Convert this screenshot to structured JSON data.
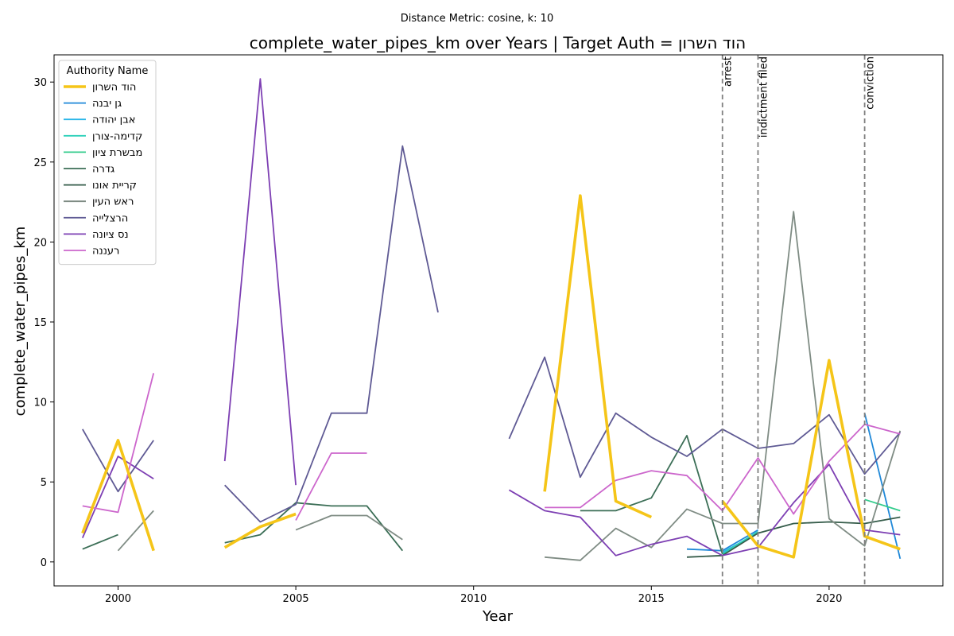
{
  "suptitle": "Distance Metric: cosine, k: 10",
  "chart_data": {
    "type": "line",
    "title": "complete_water_pipes_km over Years | Target Auth = הוד השרון",
    "xlabel": "Year",
    "ylabel": "complete_water_pipes_km",
    "xlim": [
      1998.2,
      2023.2
    ],
    "ylim": [
      -1.5,
      31.7
    ],
    "xticks": [
      2000,
      2005,
      2010,
      2015,
      2020
    ],
    "yticks": [
      0,
      5,
      10,
      15,
      20,
      25,
      30
    ],
    "grid": false,
    "legend": {
      "title": "Authority Name",
      "placement": "upper-left"
    },
    "events": [
      {
        "x": 2017,
        "label": "arrest"
      },
      {
        "x": 2018,
        "label": "indictment filed"
      },
      {
        "x": 2021,
        "label": "conviction"
      }
    ],
    "series": [
      {
        "name": "הוד השרון",
        "color": "#f5c518",
        "target": true,
        "points": [
          [
            1999,
            1.8
          ],
          [
            2000,
            7.6
          ],
          [
            2001,
            0.7
          ],
          [
            2003,
            0.9
          ],
          [
            2004,
            2.2
          ],
          [
            2005,
            3.0
          ],
          [
            2012,
            4.4
          ],
          [
            2013,
            22.9
          ],
          [
            2014,
            3.8
          ],
          [
            2015,
            2.8
          ],
          [
            2017,
            3.8
          ],
          [
            2018,
            1.0
          ],
          [
            2019,
            0.3
          ],
          [
            2020,
            12.6
          ],
          [
            2021,
            1.6
          ],
          [
            2022,
            0.8
          ]
        ]
      },
      {
        "name": "גן יבנה",
        "color": "#1f88d8",
        "target": false,
        "points": [
          [
            2016,
            0.8
          ],
          [
            2017,
            0.7
          ],
          [
            2018,
            2.0
          ],
          [
            2021,
            9.3
          ],
          [
            2022,
            0.2
          ]
        ]
      },
      {
        "name": "אבן יהודה",
        "color": "#29b6e8",
        "target": false,
        "points": [
          [
            2017,
            0.6
          ],
          [
            2018,
            1.8
          ]
        ]
      },
      {
        "name": "קדימה-צורן",
        "color": "#2ad0b8",
        "target": false,
        "points": [
          [
            2017,
            0.5
          ],
          [
            2018,
            1.9
          ]
        ]
      },
      {
        "name": "מבשרת ציון",
        "color": "#33cc8c",
        "target": false,
        "points": [
          [
            2021,
            3.9
          ],
          [
            2022,
            3.2
          ]
        ]
      },
      {
        "name": "גדרה",
        "color": "#3b6e56",
        "target": false,
        "points": [
          [
            1999,
            0.8
          ],
          [
            2000,
            1.7
          ],
          [
            2003,
            1.2
          ],
          [
            2004,
            1.7
          ],
          [
            2005,
            3.7
          ],
          [
            2006,
            3.5
          ],
          [
            2007,
            3.5
          ],
          [
            2008,
            0.7
          ],
          [
            2013,
            3.2
          ],
          [
            2014,
            3.2
          ],
          [
            2015,
            4.0
          ],
          [
            2016,
            7.9
          ],
          [
            2017,
            0.5
          ]
        ]
      },
      {
        "name": "קריית אונו",
        "color": "#355c4a",
        "target": false,
        "points": [
          [
            2016,
            0.3
          ],
          [
            2017,
            0.4
          ],
          [
            2018,
            1.8
          ],
          [
            2019,
            2.4
          ],
          [
            2020,
            2.5
          ],
          [
            2021,
            2.4
          ],
          [
            2022,
            2.8
          ]
        ]
      },
      {
        "name": "ראש העין",
        "color": "#7f8c84",
        "target": false,
        "points": [
          [
            2000,
            0.7
          ],
          [
            2001,
            3.2
          ],
          [
            2005,
            2.0
          ],
          [
            2006,
            2.9
          ],
          [
            2007,
            2.9
          ],
          [
            2008,
            1.4
          ],
          [
            2012,
            0.3
          ],
          [
            2013,
            0.1
          ],
          [
            2014,
            2.1
          ],
          [
            2015,
            0.9
          ],
          [
            2016,
            3.3
          ],
          [
            2017,
            2.4
          ],
          [
            2018,
            2.4
          ],
          [
            2019,
            21.9
          ],
          [
            2020,
            2.7
          ],
          [
            2021,
            1.0
          ],
          [
            2022,
            8.2
          ]
        ]
      },
      {
        "name": "הרצלייה",
        "color": "#5f5a94",
        "target": false,
        "points": [
          [
            1999,
            8.3
          ],
          [
            2000,
            4.4
          ],
          [
            2001,
            7.6
          ],
          [
            2003,
            4.8
          ],
          [
            2004,
            2.5
          ],
          [
            2005,
            3.6
          ],
          [
            2006,
            9.3
          ],
          [
            2007,
            9.3
          ],
          [
            2008,
            26.0
          ],
          [
            2009,
            15.6
          ],
          [
            2011,
            7.7
          ],
          [
            2012,
            12.8
          ],
          [
            2013,
            5.3
          ],
          [
            2014,
            9.3
          ],
          [
            2015,
            7.8
          ],
          [
            2016,
            6.6
          ],
          [
            2017,
            8.3
          ],
          [
            2018,
            7.1
          ],
          [
            2019,
            7.4
          ],
          [
            2020,
            9.2
          ],
          [
            2021,
            5.5
          ],
          [
            2022,
            8.1
          ]
        ]
      },
      {
        "name": "נס ציונה",
        "color": "#7d3fb3",
        "target": false,
        "points": [
          [
            1999,
            1.5
          ],
          [
            2000,
            6.6
          ],
          [
            2001,
            5.2
          ],
          [
            2003,
            6.3
          ],
          [
            2004,
            30.2
          ],
          [
            2005,
            4.8
          ],
          [
            2011,
            4.5
          ],
          [
            2012,
            3.2
          ],
          [
            2013,
            2.8
          ],
          [
            2014,
            0.4
          ],
          [
            2015,
            1.1
          ],
          [
            2016,
            1.6
          ],
          [
            2017,
            0.4
          ],
          [
            2018,
            0.9
          ],
          [
            2019,
            3.7
          ],
          [
            2020,
            6.1
          ],
          [
            2021,
            2.0
          ],
          [
            2022,
            1.7
          ]
        ]
      },
      {
        "name": "רעננה",
        "color": "#cc66cc",
        "target": false,
        "points": [
          [
            1999,
            3.5
          ],
          [
            2000,
            3.1
          ],
          [
            2001,
            11.8
          ],
          [
            2005,
            2.6
          ],
          [
            2006,
            6.8
          ],
          [
            2007,
            6.8
          ],
          [
            2012,
            3.4
          ],
          [
            2013,
            3.4
          ],
          [
            2014,
            5.1
          ],
          [
            2015,
            5.7
          ],
          [
            2016,
            5.4
          ],
          [
            2017,
            3.2
          ],
          [
            2018,
            6.5
          ],
          [
            2019,
            3.0
          ],
          [
            2020,
            6.3
          ],
          [
            2021,
            8.6
          ],
          [
            2022,
            8.0
          ]
        ]
      }
    ]
  }
}
